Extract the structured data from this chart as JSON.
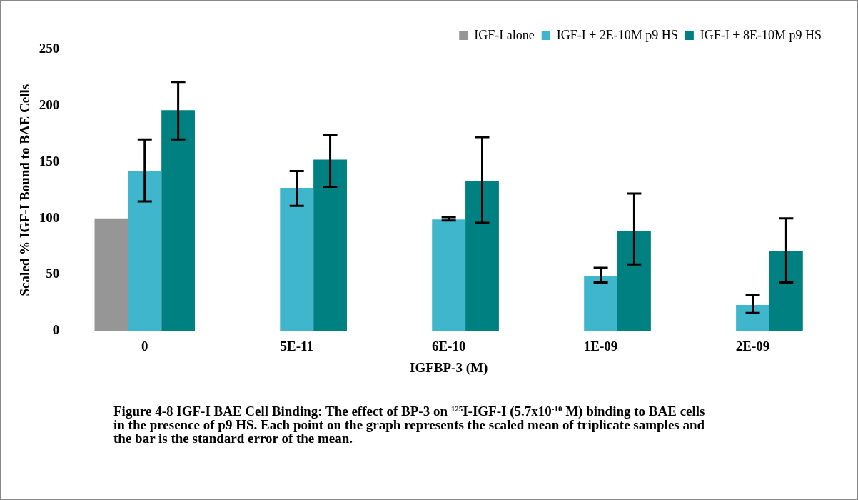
{
  "chart_data": {
    "type": "bar",
    "xlabel": "IGFBP-3 (M)",
    "ylabel": "Scaled % IGF-I Bound to BAE Cells",
    "categories": [
      "0",
      "5E-11",
      "6E-10",
      "1E-09",
      "2E-09"
    ],
    "series": [
      {
        "name": "IGF-I alone",
        "color": "#969696",
        "values": [
          100,
          null,
          null,
          null,
          null
        ]
      },
      {
        "name": "IGF-I + 2E-10M p9 HS",
        "color": "#40b6cd",
        "values": [
          142,
          127,
          99,
          49,
          23
        ],
        "errors": [
          [
            115,
            170
          ],
          [
            111,
            142
          ],
          [
            98,
            101
          ],
          [
            43,
            56
          ],
          [
            16,
            32
          ]
        ]
      },
      {
        "name": "IGF-I + 8E-10M p9 HS",
        "color": "#008080",
        "values": [
          196,
          152,
          133,
          89,
          71
        ],
        "errors": [
          [
            170,
            221
          ],
          [
            128,
            174
          ],
          [
            96,
            172
          ],
          [
            59,
            122
          ],
          [
            43,
            100
          ]
        ]
      }
    ],
    "ylim": [
      0,
      250
    ],
    "yticks": [
      0,
      50,
      100,
      150,
      200,
      250
    ],
    "grid": false,
    "legend": "top right",
    "annotations": [
      "Figure 4-8  IGF-I BAE Cell Binding: The effect of BP-3 on $^{125}$I-IGF-I (5.7x10$^{-10}$ M) binding to BAE cells in the presence of p9 HS. Each point on the graph represents the scaled mean of triplicate samples and the bar is the standard error of the mean."
    ]
  }
}
